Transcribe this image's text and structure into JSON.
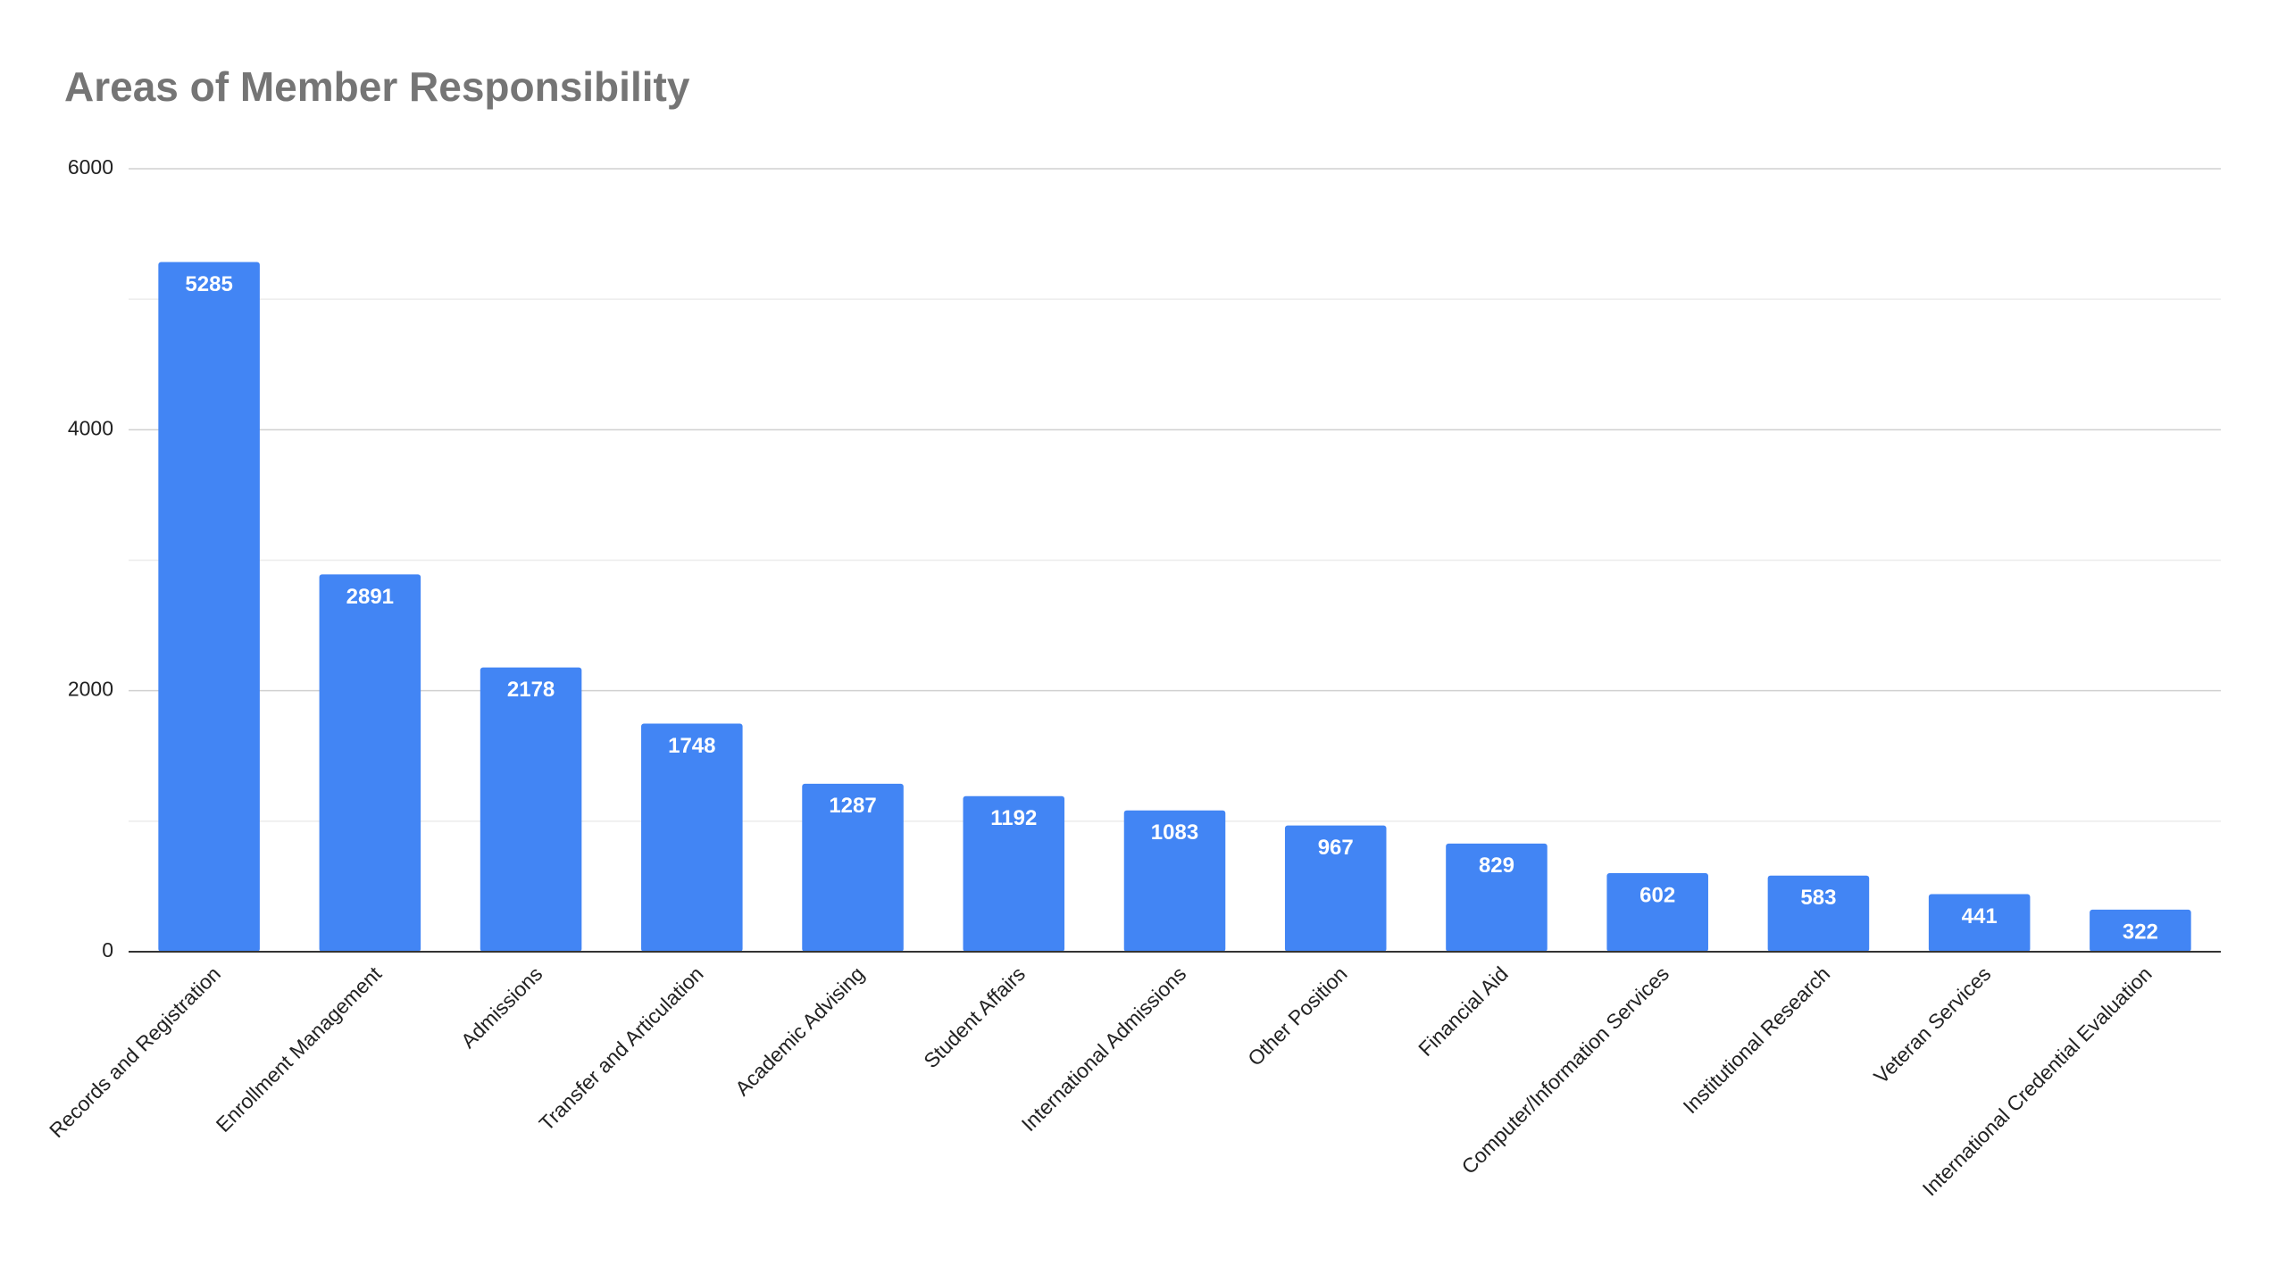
{
  "chart_data": {
    "type": "bar",
    "title": "Areas of Member Responsibility",
    "categories": [
      "Records and Registration",
      "Enrollment Management",
      "Admissions",
      "Transfer and Articulation",
      "Academic Advising",
      "Student Affairs",
      "International Admissions",
      "Other Position",
      "Financial Aid",
      "Computer/Information Services",
      "Institutional Research",
      "Veteran Services",
      "International Credential Evaluation"
    ],
    "values": [
      5285,
      2891,
      2178,
      1748,
      1287,
      1192,
      1083,
      967,
      829,
      602,
      583,
      441,
      322
    ],
    "color": "#4285f4",
    "ylim": [
      0,
      6000
    ],
    "yticks": [
      0,
      2000,
      4000,
      6000
    ],
    "grid": true
  }
}
